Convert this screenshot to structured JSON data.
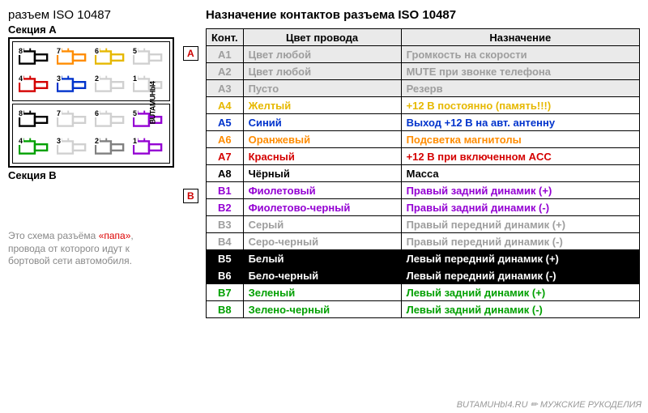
{
  "titles": {
    "connector": "разъем ISO 10487",
    "table": "Назначение контактов разъема ISO 10487",
    "sectionA": "Секция A",
    "sectionB": "Секция B"
  },
  "headers": {
    "kont": "Конт.",
    "color": "Цвет провода",
    "purpose": "Назначение"
  },
  "section_markers": {
    "a": "A",
    "b": "B"
  },
  "note": {
    "pre": "Это схема разъёма ",
    "red": "«папа»",
    "post": ", провода от которого идут к бортовой сети автомобиля."
  },
  "watermark": "BUTAMUHbI4.RU ✏ МУЖСКИЕ РУКОДЕЛИЯ",
  "vtext": "BUTAMUHbI4",
  "colors": {
    "grey": "#9e9e9e",
    "yellow": "#e6b800",
    "blue": "#0033cc",
    "orange": "#ff8c00",
    "red": "#d40000",
    "black": "#000000",
    "violet": "#9400d3",
    "green": "#00a000",
    "white": "#ffffff"
  },
  "pinsA": [
    {
      "n": "8",
      "c": "#000000"
    },
    {
      "n": "7",
      "c": "#ff8c00"
    },
    {
      "n": "6",
      "c": "#e6b800"
    },
    {
      "n": "5",
      "c": "#d0d0d0"
    },
    {
      "n": "4",
      "c": "#d40000"
    },
    {
      "n": "3",
      "c": "#0033cc"
    },
    {
      "n": "2",
      "c": "#d0d0d0"
    },
    {
      "n": "1",
      "c": "#d0d0d0"
    }
  ],
  "pinsB": [
    {
      "n": "8",
      "c": "#000000"
    },
    {
      "n": "7",
      "c": "#d0d0d0"
    },
    {
      "n": "6",
      "c": "#d0d0d0"
    },
    {
      "n": "5",
      "c": "#9400d3"
    },
    {
      "n": "4",
      "c": "#00a000"
    },
    {
      "n": "3",
      "c": "#d0d0d0"
    },
    {
      "n": "2",
      "c": "#808080"
    },
    {
      "n": "1",
      "c": "#9400d3"
    }
  ],
  "rows": [
    {
      "k": "A1",
      "kc": "#9e9e9e",
      "col": "Цвет любой",
      "cc": "#9e9e9e",
      "p": "Громкость на скорости",
      "pc": "#9e9e9e",
      "bg": "#eaeaea"
    },
    {
      "k": "A2",
      "kc": "#9e9e9e",
      "col": "Цвет любой",
      "cc": "#9e9e9e",
      "p": "MUTE при звонке телефона",
      "pc": "#9e9e9e",
      "bg": "#eaeaea"
    },
    {
      "k": "A3",
      "kc": "#9e9e9e",
      "col": "Пусто",
      "cc": "#9e9e9e",
      "p": "Резерв",
      "pc": "#9e9e9e",
      "bg": "#eaeaea"
    },
    {
      "k": "A4",
      "kc": "#e6b800",
      "col": "Желтый",
      "cc": "#e6b800",
      "p": "+12 В постоянно (память!!!)",
      "pc": "#e6b800",
      "bg": "#ffffff"
    },
    {
      "k": "A5",
      "kc": "#0033cc",
      "col": "Синий",
      "cc": "#0033cc",
      "p": "Выход +12 В на авт. антенну",
      "pc": "#0033cc",
      "bg": "#ffffff"
    },
    {
      "k": "A6",
      "kc": "#ff8c00",
      "col": "Оранжевый",
      "cc": "#ff8c00",
      "p": "Подсветка магнитолы",
      "pc": "#ff8c00",
      "bg": "#ffffff"
    },
    {
      "k": "A7",
      "kc": "#d40000",
      "col": "Красный",
      "cc": "#d40000",
      "p": "+12 В при включенном ACC",
      "pc": "#d40000",
      "bg": "#ffffff"
    },
    {
      "k": "A8",
      "kc": "#000000",
      "col": "Чёрный",
      "cc": "#000000",
      "p": "Масса",
      "pc": "#000000",
      "bg": "#ffffff"
    },
    {
      "k": "B1",
      "kc": "#9400d3",
      "col": "Фиолетовый",
      "cc": "#9400d3",
      "p": "Правый задний динамик (+)",
      "pc": "#9400d3",
      "bg": "#ffffff"
    },
    {
      "k": "B2",
      "kc": "#9400d3",
      "col": "Фиолетово-черный",
      "cc": "#9400d3",
      "p": "Правый задний динамик (-)",
      "pc": "#9400d3",
      "bg": "#ffffff"
    },
    {
      "k": "B3",
      "kc": "#9e9e9e",
      "col": "Серый",
      "cc": "#9e9e9e",
      "p": "Правый передний динамик (+)",
      "pc": "#9e9e9e",
      "bg": "#ffffff"
    },
    {
      "k": "B4",
      "kc": "#9e9e9e",
      "col": "Серо-черный",
      "cc": "#9e9e9e",
      "p": "Правый передний динамик (-)",
      "pc": "#9e9e9e",
      "bg": "#ffffff"
    },
    {
      "k": "B5",
      "kc": "#ffffff",
      "col": "Белый",
      "cc": "#ffffff",
      "p": "Левый передний динамик (+)",
      "pc": "#ffffff",
      "bg": "#000000"
    },
    {
      "k": "B6",
      "kc": "#ffffff",
      "col": "Бело-черный",
      "cc": "#ffffff",
      "p": "Левый передний динамик (-)",
      "pc": "#ffffff",
      "bg": "#000000"
    },
    {
      "k": "B7",
      "kc": "#00a000",
      "col": "Зеленый",
      "cc": "#00a000",
      "p": "Левый задний динамик (+)",
      "pc": "#00a000",
      "bg": "#ffffff"
    },
    {
      "k": "B8",
      "kc": "#00a000",
      "col": "Зелено-черный",
      "cc": "#00a000",
      "p": "Левый задний динамик (-)",
      "pc": "#00a000",
      "bg": "#ffffff"
    }
  ]
}
